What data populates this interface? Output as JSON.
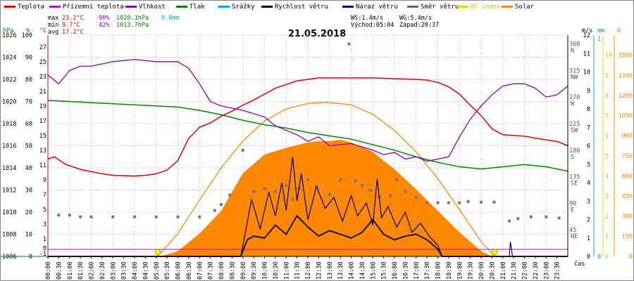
{
  "chart_data": {
    "type": "line",
    "title": "21.05.2018",
    "legend": [
      {
        "label": "Teplota",
        "color": "#dd0000"
      },
      {
        "label": "Přízemní teplota",
        "color": "#cc00cc"
      },
      {
        "label": "Vlhkost",
        "color": "#8800bb"
      },
      {
        "label": "Tlak",
        "color": "#008800"
      },
      {
        "label": "Srážky",
        "color": "#00aacc"
      },
      {
        "label": "Rychlost větru",
        "color": "#000000"
      },
      {
        "label": "Náraz větru",
        "color": "#000088"
      },
      {
        "label": "Směr větru",
        "color": "#666666"
      },
      {
        "label": "UV index",
        "color": "#dddd00"
      },
      {
        "label": "Solar",
        "color": "#ff8800"
      }
    ],
    "stats": {
      "max": {
        "label": "max",
        "temp": "23.2°C",
        "hum": "90%",
        "press": "1020.1hPa",
        "rain": "0.0mm"
      },
      "min": {
        "label": "min",
        "temp": "9.7°C",
        "hum": "42%",
        "press": "1013.7hPa"
      },
      "avg": {
        "label": "avg",
        "temp": "17.2°C"
      }
    },
    "wind_info": {
      "ws": "WS:1.4m/s",
      "wg": "WG:5.4m/s"
    },
    "sun_info": {
      "sunrise": "Východ:05:04",
      "sunset": "Západ:20:37"
    },
    "x_unit": "čas",
    "x_ticks": [
      "00:00",
      "00:30",
      "01:00",
      "01:30",
      "02:00",
      "02:30",
      "03:00",
      "03:30",
      "04:00",
      "04:30",
      "05:00",
      "05:30",
      "06:00",
      "06:30",
      "07:00",
      "07:30",
      "08:00",
      "08:30",
      "09:00",
      "09:30",
      "10:00",
      "10:30",
      "11:00",
      "11:30",
      "12:00",
      "12:30",
      "13:00",
      "13:30",
      "14:00",
      "14:30",
      "15:00",
      "15:30",
      "16:00",
      "16:30",
      "17:00",
      "17:30",
      "18:00",
      "18:30",
      "19:00",
      "19:30",
      "20:00",
      "20:30",
      "21:00",
      "21:30",
      "22:00",
      "22:30",
      "23:00",
      "23:30"
    ],
    "axes": {
      "hpa": {
        "unit": "hPa",
        "color": "#008800",
        "range": [
          1006,
          1026
        ],
        "ticks": [
          "1026",
          "1024",
          "1022",
          "1020",
          "1018",
          "1016",
          "1014",
          "1012",
          "1010",
          "1008",
          "1006"
        ]
      },
      "pct": {
        "unit": "%",
        "color": "#8800bb",
        "range": [
          0,
          100
        ],
        "ticks": [
          "100",
          "90",
          "80",
          "70",
          "60",
          "50",
          "40",
          "30",
          "20",
          "10",
          "0"
        ]
      },
      "degc": {
        "unit": "°C",
        "color": "#dd0000",
        "range": [
          -1,
          29
        ],
        "ticks": [
          "27",
          "25",
          "23",
          "21",
          "19",
          "17",
          "15",
          "13",
          "11",
          "9",
          "7",
          "5",
          "3",
          "1",
          "-1"
        ],
        "extra_ticks": [
          "0",
          "-1"
        ]
      },
      "dir": {
        "labels": [
          "360 N",
          "315 NW",
          "270 W",
          "225 SW",
          "180 S",
          "135 SE",
          "90 E",
          "45 NE"
        ]
      },
      "ms": {
        "unit": "m/s",
        "range": [
          0,
          12
        ],
        "ticks": [
          "12",
          "11",
          "10",
          "9",
          "8",
          "7",
          "6",
          "5",
          "4",
          "3",
          "2",
          "1",
          "0"
        ]
      },
      "mm": {
        "unit": "mm",
        "ticks": [
          "1",
          "0"
        ]
      },
      "uv": {
        "unit": "",
        "ticks": [
          "10",
          "9",
          "8",
          "7",
          "6",
          "5",
          "4",
          "3",
          "2",
          "1",
          "0"
        ]
      },
      "solar": {
        "unit": "W",
        "ticks": [
          "1500",
          "1350",
          "1200",
          "1050",
          "900",
          "750",
          "600",
          "450",
          "300",
          "150",
          "0"
        ]
      }
    },
    "series": {
      "temperature_c": {
        "hours": [
          0,
          0.3,
          0.8,
          1.5,
          2.5,
          3,
          4,
          4.5,
          5,
          5.5,
          6,
          6.5,
          7,
          7.5,
          8,
          8.5,
          9,
          9.5,
          10,
          10.5,
          11,
          11.5,
          12,
          12.5,
          13,
          14,
          15,
          16,
          17,
          17.5,
          18,
          18.5,
          19,
          19.5,
          20,
          20.5,
          21,
          22,
          23,
          23.5,
          24
        ],
        "values": [
          12.2,
          12.5,
          11.5,
          10.8,
          10.2,
          10.0,
          9.9,
          10.0,
          10.2,
          10.7,
          12.0,
          15.0,
          16.5,
          17.1,
          18.0,
          18.7,
          19.5,
          20.2,
          21.0,
          21.8,
          22.3,
          22.8,
          23.0,
          23.2,
          23.2,
          23.2,
          23.2,
          23.1,
          23.0,
          22.9,
          22.6,
          22.0,
          21.0,
          19.5,
          18.1,
          16.3,
          15.5,
          15.3,
          14.8,
          14.6,
          14.0
        ]
      },
      "humidity_pct": {
        "hours": [
          0,
          0.5,
          1,
          1.5,
          2,
          3,
          4,
          5,
          6,
          6.5,
          7,
          7.5,
          8,
          8.5,
          9,
          10,
          10.5,
          11,
          11.5,
          12,
          12.5,
          13,
          14,
          15,
          15.5,
          16,
          16.5,
          17,
          17.5,
          18,
          18.5,
          19,
          19.5,
          20,
          20.5,
          21,
          21.5,
          22,
          22.5,
          23,
          23.5,
          24
        ],
        "values": [
          82,
          78,
          84,
          86,
          86,
          88,
          89,
          88,
          88,
          85,
          78,
          70,
          68,
          67,
          66,
          63,
          59,
          57,
          55,
          52,
          54,
          50,
          51,
          48,
          46,
          47,
          44,
          45,
          43,
          44,
          45,
          54,
          62,
          68,
          73,
          77,
          78,
          78,
          76,
          72,
          73,
          77
        ]
      },
      "pressure_hpa": {
        "hours": [
          0,
          2,
          4,
          6,
          7,
          8,
          9,
          10,
          11,
          12,
          13,
          14,
          15,
          16,
          17,
          18,
          19,
          20,
          21,
          22,
          23,
          24
        ],
        "values": [
          1020.1,
          1019.9,
          1019.7,
          1019.5,
          1019.2,
          1018.8,
          1018.3,
          1017.9,
          1017.6,
          1017.2,
          1016.9,
          1016.6,
          1016.1,
          1015.6,
          1015.0,
          1014.5,
          1014.1,
          1013.9,
          1014.1,
          1014.3,
          1014.1,
          1013.7
        ]
      },
      "wind_speed_ms": {
        "hours": [
          0,
          8.9,
          9.2,
          9.5,
          10,
          10.5,
          11,
          11.5,
          12,
          12.5,
          13,
          13.5,
          14,
          14.5,
          15,
          15.5,
          16,
          16.5,
          17,
          17.5,
          18,
          18.2,
          24
        ],
        "values": [
          0,
          0,
          0.9,
          1.1,
          1.0,
          1.7,
          1.2,
          2.2,
          1.6,
          1.1,
          1.4,
          1.2,
          1.0,
          1.3,
          2.0,
          1.2,
          0.9,
          1.1,
          1.2,
          0.9,
          0.4,
          0,
          0
        ]
      },
      "wind_gust_ms": {
        "hours": [
          0,
          8.9,
          9.1,
          9.4,
          9.8,
          10.2,
          10.5,
          10.8,
          11.0,
          11.3,
          11.5,
          11.7,
          12.0,
          12.4,
          12.8,
          13.2,
          13.6,
          14.0,
          14.3,
          14.7,
          15.0,
          15.2,
          15.4,
          15.7,
          16.1,
          16.5,
          16.8,
          17.2,
          17.6,
          18.0,
          18.2,
          21.3,
          21.35,
          21.45,
          24
        ],
        "values": [
          0,
          0,
          1.2,
          3.1,
          1.5,
          3.5,
          2.2,
          4.0,
          2.5,
          5.4,
          3.0,
          4.5,
          2.0,
          3.8,
          2.6,
          3.2,
          1.9,
          3.3,
          2.2,
          2.9,
          1.7,
          4.2,
          2.1,
          2.7,
          1.6,
          2.4,
          1.3,
          1.8,
          1.1,
          0.6,
          0,
          0,
          0.8,
          0,
          0
        ]
      },
      "solar_wm2": {
        "hours": [
          5.2,
          6,
          7,
          8,
          9,
          10,
          11,
          12,
          12.5,
          13,
          13.5,
          14,
          15,
          16,
          17,
          18,
          19,
          20,
          20.5
        ],
        "values": [
          0,
          40,
          170,
          340,
          620,
          760,
          810,
          850,
          860,
          860,
          870,
          850,
          780,
          650,
          500,
          340,
          180,
          40,
          0
        ]
      },
      "solar_theoretical_wm2": {
        "hours": [
          5.07,
          6,
          7,
          8,
          9,
          10,
          11,
          12,
          12.83,
          14,
          15,
          16,
          17,
          18,
          19,
          20,
          20.62
        ],
        "values": [
          0,
          170,
          420,
          660,
          860,
          1010,
          1100,
          1140,
          1150,
          1130,
          1060,
          940,
          780,
          580,
          350,
          110,
          0
        ]
      },
      "wind_direction_deg": {
        "points": [
          [
            0.5,
            70
          ],
          [
            1.0,
            70
          ],
          [
            1.5,
            67
          ],
          [
            2.0,
            67
          ],
          [
            3.0,
            67
          ],
          [
            4.0,
            67
          ],
          [
            5.0,
            67
          ],
          [
            6.0,
            67
          ],
          [
            7.0,
            67
          ],
          [
            7.7,
            78
          ],
          [
            8.0,
            88
          ],
          [
            8.4,
            104
          ],
          [
            9.0,
            180
          ],
          [
            9.5,
            110
          ],
          [
            10.0,
            115
          ],
          [
            10.5,
            110
          ],
          [
            11.0,
            120
          ],
          [
            11.3,
            97
          ],
          [
            11.6,
            115
          ],
          [
            12.0,
            130
          ],
          [
            12.4,
            118
          ],
          [
            13.0,
            105
          ],
          [
            13.5,
            130
          ],
          [
            13.9,
            360
          ],
          [
            14.2,
            128
          ],
          [
            14.5,
            120
          ],
          [
            14.9,
            112
          ],
          [
            15.3,
            100
          ],
          [
            15.8,
            103
          ],
          [
            16.1,
            130
          ],
          [
            16.5,
            110
          ],
          [
            17.0,
            100
          ],
          [
            17.5,
            91
          ],
          [
            18.0,
            91
          ],
          [
            18.5,
            91
          ],
          [
            19.0,
            91
          ],
          [
            19.4,
            93
          ],
          [
            20.0,
            92
          ],
          [
            20.6,
            92
          ],
          [
            21.3,
            60
          ],
          [
            21.7,
            64
          ],
          [
            22.3,
            67
          ],
          [
            23.0,
            67
          ],
          [
            23.6,
            65
          ]
        ]
      },
      "sun_markers_hours": [
        5.07,
        20.62
      ]
    }
  }
}
